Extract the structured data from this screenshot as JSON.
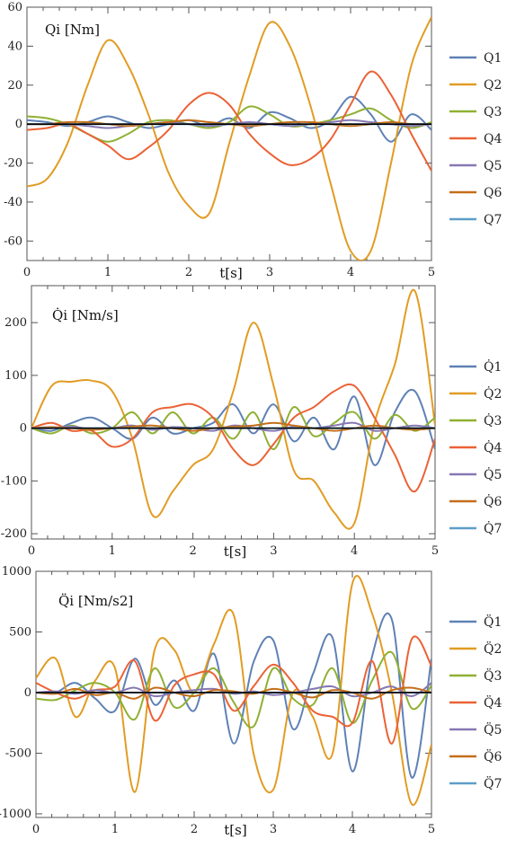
{
  "colors": {
    "Q1": "#5e81b5",
    "Q2": "#e19c24",
    "Q3": "#8fb032",
    "Q4": "#eb6235",
    "Q5": "#8778b3",
    "Q6": "#c56e1a",
    "Q7": "#5d9ec7",
    "zero": "#000000"
  },
  "chart_data": [
    {
      "type": "line",
      "label": "Qi [Nm]",
      "xlabel": "t[s]",
      "xlim": [
        0,
        5
      ],
      "ylim": [
        -70,
        60
      ],
      "xticks": [
        "0",
        "1",
        "2",
        "3",
        "4",
        "5"
      ],
      "yticks": [
        "60",
        "40",
        "20",
        "0",
        "-20",
        "-40",
        "-60"
      ],
      "legend": [
        "Q1",
        "Q2",
        "Q3",
        "Q4",
        "Q5",
        "Q6",
        "Q7"
      ],
      "legend_position": "right",
      "x": [
        0,
        0.25,
        0.5,
        0.75,
        1,
        1.25,
        1.5,
        1.75,
        2,
        2.25,
        2.5,
        2.75,
        3,
        3.25,
        3.5,
        3.75,
        4,
        4.25,
        4.5,
        4.75,
        5
      ],
      "series": [
        {
          "name": "Q1",
          "values": [
            2,
            1,
            -1,
            1,
            4,
            1,
            -2,
            0,
            2,
            -1,
            3,
            -2,
            6,
            3,
            -2,
            2,
            14,
            5,
            -9,
            5,
            -3
          ]
        },
        {
          "name": "Q2",
          "values": [
            -32,
            -28,
            -10,
            20,
            43,
            30,
            5,
            -25,
            -42,
            -46,
            -10,
            25,
            52,
            40,
            10,
            -30,
            -65,
            -65,
            -20,
            30,
            55
          ]
        },
        {
          "name": "Q3",
          "values": [
            4,
            3,
            0,
            -5,
            -9,
            -5,
            1,
            2,
            0,
            -2,
            1,
            9,
            5,
            -1,
            0,
            2,
            5,
            8,
            2,
            -2,
            1
          ]
        },
        {
          "name": "Q4",
          "values": [
            -3,
            -2,
            0,
            -5,
            -11,
            -18,
            -12,
            -3,
            10,
            16,
            10,
            -5,
            -15,
            -21,
            -18,
            -8,
            10,
            27,
            15,
            -5,
            -24
          ]
        },
        {
          "name": "Q5",
          "values": [
            0,
            0,
            0,
            -1,
            -2,
            -1,
            0,
            1,
            0,
            -1,
            0,
            1,
            0,
            -1,
            0,
            1,
            2,
            1,
            0,
            -1,
            0
          ]
        },
        {
          "name": "Q6",
          "values": [
            0,
            0,
            1,
            1,
            0,
            -1,
            0,
            1,
            2,
            1,
            0,
            -1,
            0,
            1,
            1,
            0,
            -1,
            0,
            1,
            0,
            0
          ]
        },
        {
          "name": "Q7",
          "values": [
            0,
            0,
            0,
            0,
            0,
            0,
            0,
            0,
            0,
            0,
            0,
            0,
            0,
            0,
            0,
            0,
            0,
            0,
            0,
            0,
            0
          ]
        }
      ]
    },
    {
      "type": "line",
      "label": "Q̇i [Nm/s]",
      "xlabel": "t[s]",
      "xlim": [
        0,
        5
      ],
      "ylim": [
        -210,
        270
      ],
      "xticks": [
        "0",
        "1",
        "2",
        "3",
        "4",
        "5"
      ],
      "yticks": [
        "200",
        "100",
        "0",
        "-100",
        "-200"
      ],
      "legend": [
        "Q̇1",
        "Q̇2",
        "Q̇3",
        "Q̇4",
        "Q̇5",
        "Q̇6",
        "Q̇7"
      ],
      "legend_position": "right",
      "x": [
        0,
        0.25,
        0.5,
        0.75,
        1,
        1.25,
        1.5,
        1.75,
        2,
        2.25,
        2.5,
        2.75,
        3,
        3.25,
        3.5,
        3.75,
        4,
        4.25,
        4.5,
        4.75,
        5
      ],
      "series": [
        {
          "name": "Q̇1",
          "values": [
            0,
            -5,
            10,
            20,
            0,
            -20,
            20,
            -10,
            0,
            10,
            45,
            -10,
            45,
            -25,
            20,
            -40,
            60,
            -70,
            30,
            70,
            -40
          ]
        },
        {
          "name": "Q̇2",
          "values": [
            0,
            80,
            88,
            90,
            70,
            -20,
            -165,
            -120,
            -70,
            -40,
            70,
            200,
            80,
            -80,
            -100,
            -160,
            -180,
            10,
            120,
            260,
            5
          ]
        },
        {
          "name": "Q̇3",
          "values": [
            0,
            -10,
            5,
            -10,
            0,
            30,
            -10,
            30,
            -10,
            20,
            -20,
            30,
            -40,
            40,
            -15,
            10,
            30,
            -20,
            25,
            -5,
            20
          ]
        },
        {
          "name": "Q̇4",
          "values": [
            0,
            10,
            -5,
            -5,
            -35,
            -20,
            30,
            40,
            45,
            20,
            -40,
            -70,
            -30,
            20,
            40,
            70,
            80,
            20,
            -50,
            -120,
            -20
          ]
        },
        {
          "name": "Q̇5",
          "values": [
            0,
            0,
            3,
            -2,
            0,
            5,
            -3,
            2,
            0,
            -5,
            5,
            0,
            -5,
            3,
            0,
            5,
            10,
            -5,
            0,
            5,
            0
          ]
        },
        {
          "name": "Q̇6",
          "values": [
            0,
            2,
            0,
            -3,
            0,
            3,
            5,
            0,
            -5,
            0,
            3,
            5,
            10,
            5,
            0,
            -5,
            0,
            5,
            0,
            -3,
            0
          ]
        },
        {
          "name": "Q̇7",
          "values": [
            0,
            0,
            0,
            0,
            0,
            0,
            0,
            0,
            0,
            0,
            0,
            0,
            0,
            0,
            0,
            0,
            0,
            0,
            0,
            0,
            0
          ]
        }
      ]
    },
    {
      "type": "line",
      "label": "Q̈i [Nm/s2]",
      "xlabel": "t[s]",
      "xlim": [
        0,
        5
      ],
      "ylim": [
        -1030,
        1000
      ],
      "xticks": [
        "0",
        "1",
        "2",
        "3",
        "4",
        "5"
      ],
      "yticks": [
        "1000",
        "500",
        "0",
        "-500",
        "-1000"
      ],
      "legend": [
        "Q̈1",
        "Q̈2",
        "Q̈3",
        "Q̈4",
        "Q̈5",
        "Q̈6",
        "Q̈7"
      ],
      "legend_position": "right",
      "x": [
        0,
        0.25,
        0.5,
        0.75,
        1,
        1.25,
        1.5,
        1.75,
        2,
        2.25,
        2.5,
        2.75,
        3,
        3.25,
        3.5,
        3.75,
        4,
        4.25,
        4.5,
        4.75,
        5
      ],
      "series": [
        {
          "name": "Q̈1",
          "values": [
            0,
            0,
            80,
            -50,
            -150,
            280,
            -100,
            100,
            -150,
            320,
            -420,
            250,
            430,
            -300,
            150,
            450,
            -650,
            300,
            600,
            -700,
            280
          ]
        },
        {
          "name": "Q̈2",
          "values": [
            120,
            280,
            -200,
            100,
            200,
            -820,
            350,
            350,
            0,
            400,
            640,
            -500,
            -800,
            0,
            -200,
            -500,
            900,
            650,
            0,
            -920,
            -430
          ]
        },
        {
          "name": "Q̈3",
          "values": [
            -50,
            -60,
            20,
            80,
            0,
            -220,
            200,
            -120,
            0,
            200,
            -80,
            -280,
            200,
            -50,
            -100,
            200,
            -250,
            100,
            330,
            -130,
            60
          ]
        },
        {
          "name": "Q̈4",
          "values": [
            80,
            0,
            -50,
            20,
            50,
            260,
            -230,
            60,
            150,
            150,
            -150,
            50,
            230,
            80,
            -150,
            -200,
            -250,
            260,
            -420,
            440,
            220
          ]
        },
        {
          "name": "Q̈5",
          "values": [
            0,
            10,
            -10,
            20,
            0,
            40,
            -30,
            0,
            20,
            30,
            -10,
            10,
            -20,
            0,
            30,
            50,
            -30,
            0,
            50,
            -30,
            80
          ]
        },
        {
          "name": "Q̈6",
          "values": [
            0,
            -10,
            30,
            -20,
            0,
            -50,
            40,
            0,
            -30,
            20,
            10,
            -10,
            30,
            0,
            -40,
            20,
            0,
            -50,
            20,
            40,
            0
          ]
        },
        {
          "name": "Q̈7",
          "values": [
            0,
            0,
            0,
            0,
            0,
            0,
            0,
            0,
            0,
            0,
            0,
            0,
            0,
            0,
            0,
            0,
            0,
            0,
            0,
            0,
            0
          ]
        }
      ]
    }
  ]
}
